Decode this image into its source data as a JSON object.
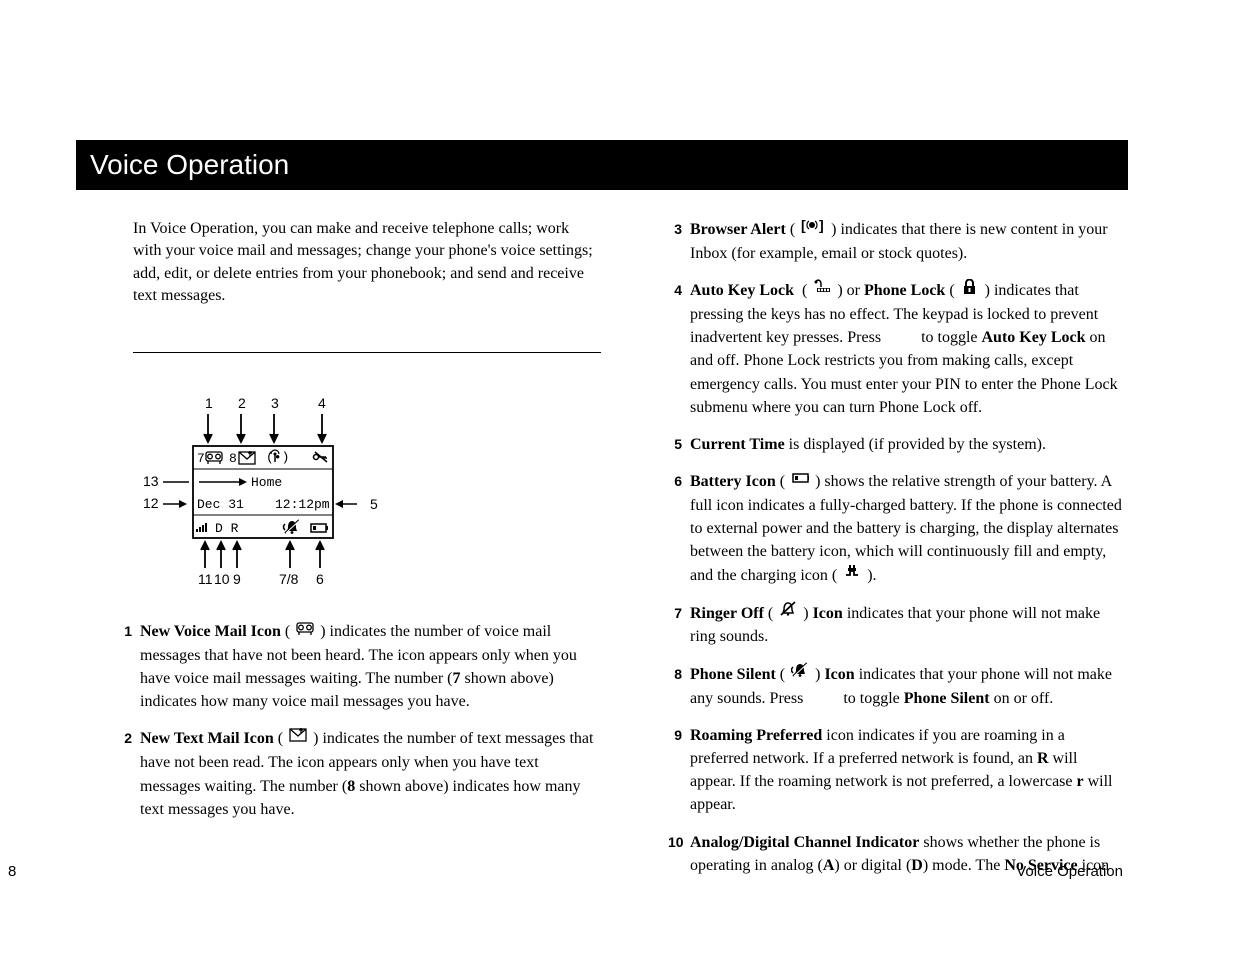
{
  "title": "Voice Operation",
  "intro": "In Voice Operation, you can make and receive telephone calls; work with your voice mail and messages; change your phone's voice settings; add, edit, or delete entries from your phonebook; and send and receive text messages.",
  "footer": {
    "page": "8",
    "section": "Voice Operation"
  },
  "diagram": {
    "top_labels": [
      "1",
      "2",
      "3",
      "4"
    ],
    "left_labels": [
      "13",
      "12"
    ],
    "right_label": "5",
    "bottom_labels": [
      "11",
      "10",
      "9",
      "7/8",
      "6"
    ],
    "row1": {
      "vm_count": "7",
      "txt_count": "8"
    },
    "row2": "Home",
    "row3": {
      "date": "Dec 31",
      "time": "12:12pm"
    },
    "row4": {
      "dr": "D R"
    }
  },
  "left_items": [
    {
      "n": "1",
      "lead": "New Voice Mail Icon",
      "tail_a": " ( ",
      "icon": "voicemail",
      "tail_b": " ) indicates the number of voice mail messages that have not been heard. The icon appears only when you have voice mail messages waiting. The number (",
      "bold_mid": "7",
      "tail_c": " shown above) indicates how many voice mail messages you have."
    },
    {
      "n": "2",
      "lead": "New Text Mail Icon",
      "tail_a": " ( ",
      "icon": "textmail",
      "tail_b": " ) indicates the number of text messages that have not been read. The icon appears only when you have text messages waiting. The number (",
      "bold_mid": "8",
      "tail_c": " shown above) indicates how many text messages you have."
    }
  ],
  "right_items": [
    {
      "n": "3",
      "html": "<b>Browser Alert</b> ( {ICON:browser} ) indicates that there is new content in your Inbox (for example, email or stock quotes)."
    },
    {
      "n": "4",
      "html": "<b>Auto Key Lock</b> &nbsp;( {ICON:keylock} ) or <b>Phone Lock</b> ( {ICON:padlock} ) indicates that pressing the keys has no effect. The keypad is locked to prevent inadvertent key presses. Press &nbsp;&nbsp;&nbsp;&nbsp;&nbsp;&nbsp;&nbsp;&nbsp; to toggle <b>Auto Key Lock</b> on and off. Phone Lock restricts you from making calls, except emergency calls. You must enter your PIN to enter the Phone Lock submenu where you can turn Phone Lock off."
    },
    {
      "n": "5",
      "html": "<b>Current Time</b> is displayed (if provided by the system)."
    },
    {
      "n": "6",
      "html": "<b>Battery Icon</b> ( {ICON:battery} ) shows the relative strength of your battery. A full icon indicates a fully-charged battery. If the phone is connected to external power and the battery is charging, the display alternates between the battery icon, which will continuously fill and empty, and the charging icon ( {ICON:charging} )."
    },
    {
      "n": "7",
      "html": "<b>Ringer Off</b> ( {ICON:ringeroff} ) <b>Icon</b> indicates that your phone will not make ring sounds."
    },
    {
      "n": "8",
      "html": "<b>Phone Silent</b> ( {ICON:silent} ) <b>Icon</b> indicates that your phone will not make any sounds. Press &nbsp;&nbsp;&nbsp;&nbsp;&nbsp;&nbsp;&nbsp;&nbsp; to toggle <b>Phone Silent</b> on or off."
    },
    {
      "n": "9",
      "html": "<b>Roaming Preferred</b> icon indicates if you are roaming in a preferred network. If a preferred network is found, an <b>R</b>  will appear. If the roaming network is not preferred, a lowercase <b>r</b> will appear."
    },
    {
      "n": "10",
      "html": "<b>Analog/Digital Channel Indicator</b> shows whether the phone is operating in analog (<b>A</b>) or digital (<b>D</b>) mode. The <b>No Service</b> icon"
    }
  ],
  "colors": {
    "bg": "#ffffff",
    "fg": "#000000"
  },
  "fonts": {
    "body_size": 16,
    "num_size": 14,
    "title_size": 28
  }
}
